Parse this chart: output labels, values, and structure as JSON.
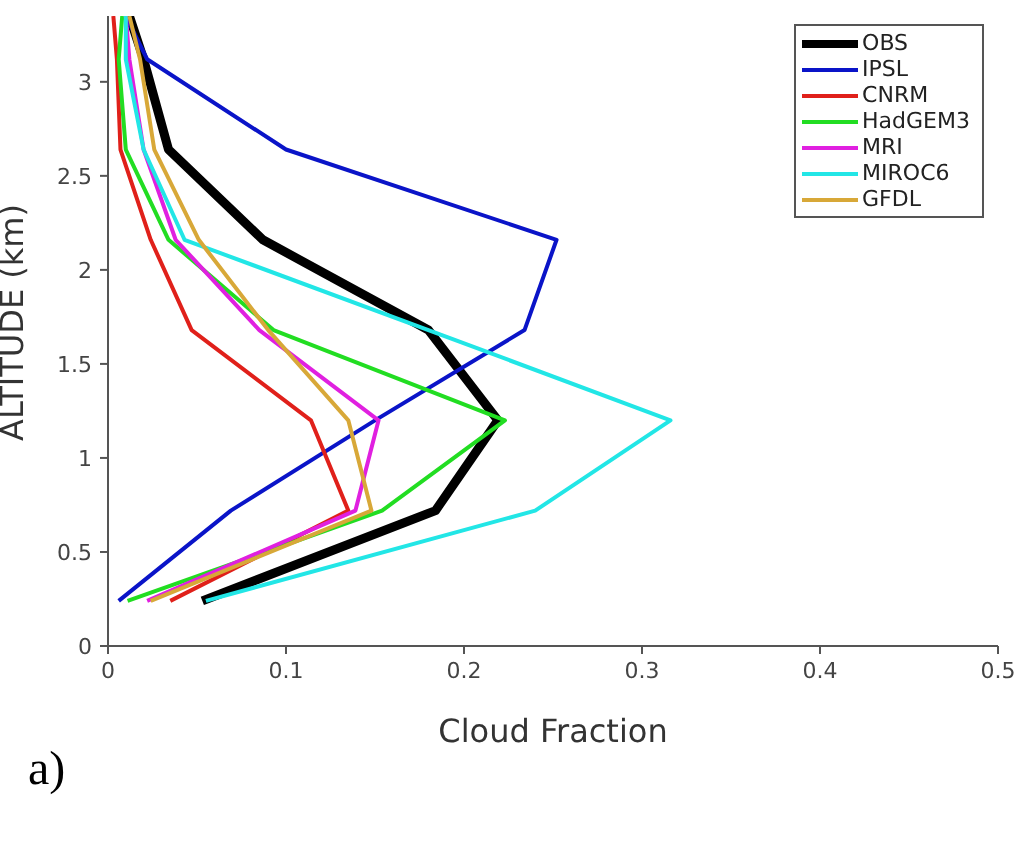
{
  "chart_data": {
    "type": "line",
    "xlabel": "Cloud Fraction",
    "ylabel": "ALTITUDE (km)",
    "annotations": [
      "a)"
    ],
    "xlim": [
      0,
      0.5
    ],
    "xticks": [
      0,
      0.1,
      0.2,
      0.3,
      0.4,
      0.5
    ],
    "ylim": [
      0,
      3.35
    ],
    "yticks": [
      0,
      0.5,
      1,
      1.5,
      2,
      2.5,
      3
    ],
    "grid": false,
    "legend": "top right",
    "marker": "none",
    "line_style": "solid",
    "series": [
      {
        "name": "OBS",
        "color": "#000000",
        "x": [
          0.053,
          0.184,
          0.219,
          0.18,
          0.087,
          0.034,
          0.02,
          0.012
        ],
        "values": [
          0.24,
          0.72,
          1.2,
          1.68,
          2.16,
          2.64,
          3.12,
          3.35
        ]
      },
      {
        "name": "IPSL",
        "color": "#0a14c8",
        "x": [
          0.006,
          0.069,
          0.15,
          0.234,
          0.252,
          0.1,
          0.022,
          0.01
        ],
        "values": [
          0.24,
          0.72,
          1.2,
          1.68,
          2.16,
          2.64,
          3.12,
          3.35
        ]
      },
      {
        "name": "CNRM",
        "color": "#e0201a",
        "x": [
          0.035,
          0.135,
          0.114,
          0.047,
          0.024,
          0.007,
          0.005,
          0.003
        ],
        "values": [
          0.24,
          0.72,
          1.2,
          1.68,
          2.16,
          2.64,
          3.12,
          3.35
        ]
      },
      {
        "name": "HadGEM3",
        "color": "#22dd22",
        "x": [
          0.011,
          0.154,
          0.223,
          0.093,
          0.034,
          0.01,
          0.006,
          0.008
        ],
        "values": [
          0.24,
          0.72,
          1.2,
          1.68,
          2.16,
          2.64,
          3.12,
          3.35
        ]
      },
      {
        "name": "MRI",
        "color": "#e020e0",
        "x": [
          0.022,
          0.139,
          0.152,
          0.085,
          0.038,
          0.02,
          0.012,
          0.01
        ],
        "values": [
          0.24,
          0.72,
          1.2,
          1.68,
          2.16,
          2.64,
          3.12,
          3.35
        ]
      },
      {
        "name": "MIROC6",
        "color": "#22e6e6",
        "x": [
          0.055,
          0.24,
          0.316,
          0.18,
          0.043,
          0.02,
          0.01,
          0.01
        ],
        "values": [
          0.24,
          0.72,
          1.2,
          1.68,
          2.16,
          2.64,
          3.12,
          3.35
        ]
      },
      {
        "name": "GFDL",
        "color": "#d8a838",
        "x": [
          0.024,
          0.148,
          0.135,
          0.09,
          0.051,
          0.026,
          0.018,
          0.012
        ],
        "values": [
          0.24,
          0.72,
          1.2,
          1.68,
          2.16,
          2.64,
          3.12,
          3.35
        ]
      }
    ]
  }
}
